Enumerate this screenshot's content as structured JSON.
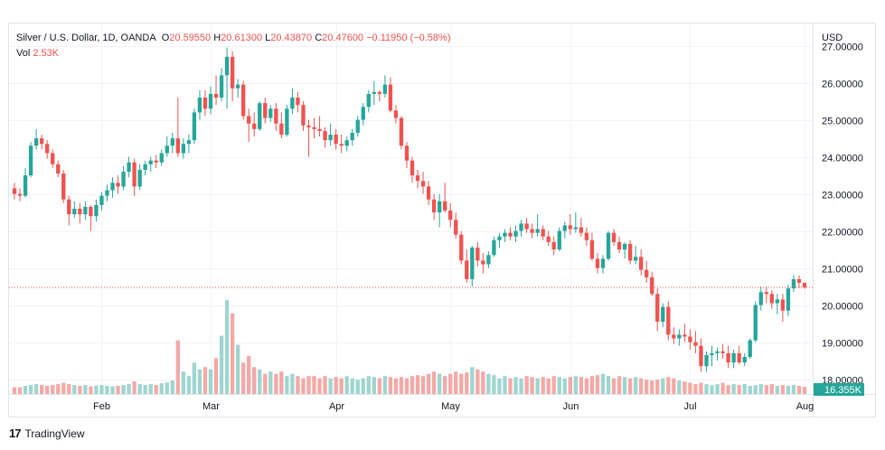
{
  "header": {
    "symbol": "Silver / U.S. Dollar, 1D, OANDA",
    "open_label": "O",
    "open": "20.59550",
    "high_label": "H",
    "high": "20.61300",
    "low_label": "L",
    "low": "20.43870",
    "close_label": "C",
    "close": "20.47600",
    "change": "−0.11950 (−0.58%)",
    "vol_label": "Vol",
    "vol": "2.53K"
  },
  "footer": {
    "logo": "17",
    "brand": "TradingView"
  },
  "colors": {
    "up": "#26a69a",
    "down": "#ef5350",
    "up_vol": "#9fd5cf",
    "down_vol": "#f4a9a7",
    "grid": "#f0f3fa",
    "current": "#ef5350",
    "vol_badge": "#26a69a"
  },
  "chart_data": {
    "type": "candlestick",
    "currency": "USD",
    "ylim": [
      17.6,
      27.6
    ],
    "yticks": [
      "18.00000",
      "19.00000",
      "20.00000",
      "21.00000",
      "22.00000",
      "23.00000",
      "24.00000",
      "25.00000",
      "26.00000",
      "27.00000"
    ],
    "x_labels": [
      {
        "label": "Feb",
        "index": 16
      },
      {
        "label": "Mar",
        "index": 36
      },
      {
        "label": "Apr",
        "index": 59
      },
      {
        "label": "May",
        "index": 80
      },
      {
        "label": "Jun",
        "index": 102
      },
      {
        "label": "Jul",
        "index": 124
      },
      {
        "label": "Aug",
        "index": 145
      }
    ],
    "current_price": 20.476,
    "volume_badge": "16.355K",
    "candles": [
      [
        23.15,
        23.3,
        22.85,
        23.0
      ],
      [
        23.0,
        23.15,
        22.8,
        22.95
      ],
      [
        22.95,
        23.7,
        22.9,
        23.5
      ],
      [
        23.5,
        24.4,
        23.45,
        24.3
      ],
      [
        24.3,
        24.75,
        24.2,
        24.5
      ],
      [
        24.5,
        24.6,
        24.2,
        24.35
      ],
      [
        24.35,
        24.45,
        23.95,
        24.1
      ],
      [
        24.1,
        24.2,
        23.7,
        23.8
      ],
      [
        23.8,
        23.9,
        23.45,
        23.55
      ],
      [
        23.55,
        23.65,
        22.75,
        22.85
      ],
      [
        22.85,
        22.95,
        22.15,
        22.45
      ],
      [
        22.45,
        22.8,
        22.35,
        22.6
      ],
      [
        22.6,
        22.75,
        22.2,
        22.45
      ],
      [
        22.45,
        22.8,
        22.3,
        22.65
      ],
      [
        22.65,
        22.7,
        22.0,
        22.4
      ],
      [
        22.4,
        22.85,
        22.25,
        22.7
      ],
      [
        22.7,
        23.05,
        22.55,
        22.95
      ],
      [
        22.95,
        23.25,
        22.8,
        23.1
      ],
      [
        23.1,
        23.45,
        22.9,
        23.3
      ],
      [
        23.3,
        23.5,
        23.0,
        23.2
      ],
      [
        23.2,
        23.75,
        23.1,
        23.6
      ],
      [
        23.6,
        24.0,
        23.45,
        23.85
      ],
      [
        23.85,
        23.95,
        22.95,
        23.2
      ],
      [
        23.2,
        23.8,
        23.1,
        23.65
      ],
      [
        23.65,
        23.9,
        23.5,
        23.8
      ],
      [
        23.8,
        24.0,
        23.6,
        23.9
      ],
      [
        23.9,
        24.05,
        23.7,
        23.85
      ],
      [
        23.85,
        24.2,
        23.75,
        24.1
      ],
      [
        24.1,
        24.55,
        24.0,
        24.3
      ],
      [
        24.3,
        24.65,
        24.1,
        24.5
      ],
      [
        24.5,
        25.6,
        24.0,
        24.1
      ],
      [
        24.1,
        24.5,
        23.95,
        24.35
      ],
      [
        24.35,
        24.6,
        24.1,
        24.45
      ],
      [
        24.45,
        25.3,
        24.35,
        25.2
      ],
      [
        25.2,
        25.8,
        25.0,
        25.6
      ],
      [
        25.6,
        25.8,
        25.1,
        25.3
      ],
      [
        25.3,
        25.9,
        25.15,
        25.7
      ],
      [
        25.7,
        26.2,
        25.4,
        25.6
      ],
      [
        25.6,
        26.4,
        25.5,
        26.2
      ],
      [
        26.2,
        26.95,
        25.3,
        26.7
      ],
      [
        26.7,
        26.85,
        25.5,
        25.85
      ],
      [
        25.85,
        26.1,
        25.6,
        25.95
      ],
      [
        25.95,
        26.05,
        25.0,
        25.1
      ],
      [
        25.1,
        25.3,
        24.4,
        24.9
      ],
      [
        24.9,
        25.2,
        24.55,
        24.75
      ],
      [
        24.75,
        25.5,
        24.7,
        25.45
      ],
      [
        25.45,
        25.6,
        24.9,
        25.05
      ],
      [
        25.05,
        25.4,
        24.95,
        25.3
      ],
      [
        25.3,
        25.45,
        24.7,
        24.9
      ],
      [
        24.9,
        25.2,
        24.5,
        24.6
      ],
      [
        24.6,
        25.4,
        24.55,
        25.3
      ],
      [
        25.3,
        25.85,
        25.15,
        25.6
      ],
      [
        25.6,
        25.75,
        25.2,
        25.4
      ],
      [
        25.4,
        25.5,
        24.7,
        24.85
      ],
      [
        24.85,
        25.0,
        24.0,
        24.8
      ],
      [
        24.8,
        25.05,
        24.5,
        24.75
      ],
      [
        24.75,
        25.1,
        24.55,
        24.7
      ],
      [
        24.7,
        24.8,
        24.25,
        24.45
      ],
      [
        24.45,
        24.9,
        24.3,
        24.6
      ],
      [
        24.6,
        24.75,
        24.2,
        24.35
      ],
      [
        24.35,
        24.6,
        24.1,
        24.3
      ],
      [
        24.3,
        24.55,
        24.15,
        24.45
      ],
      [
        24.45,
        24.75,
        24.3,
        24.65
      ],
      [
        24.65,
        25.1,
        24.55,
        25.0
      ],
      [
        25.0,
        25.45,
        24.85,
        25.35
      ],
      [
        25.35,
        25.8,
        25.2,
        25.7
      ],
      [
        25.7,
        26.05,
        25.4,
        25.75
      ],
      [
        25.75,
        25.8,
        25.5,
        25.7
      ],
      [
        25.7,
        26.2,
        25.6,
        25.95
      ],
      [
        25.95,
        26.15,
        25.2,
        25.25
      ],
      [
        25.25,
        25.4,
        24.9,
        25.05
      ],
      [
        25.05,
        25.1,
        24.2,
        24.3
      ],
      [
        24.3,
        24.4,
        23.7,
        23.9
      ],
      [
        23.9,
        24.0,
        23.3,
        23.5
      ],
      [
        23.5,
        23.65,
        23.15,
        23.35
      ],
      [
        23.35,
        23.6,
        23.0,
        23.2
      ],
      [
        23.2,
        23.35,
        22.7,
        22.85
      ],
      [
        22.85,
        23.0,
        22.3,
        22.5
      ],
      [
        22.5,
        23.0,
        22.1,
        22.8
      ],
      [
        22.8,
        23.3,
        22.5,
        22.55
      ],
      [
        22.55,
        22.75,
        22.1,
        22.3
      ],
      [
        22.3,
        22.5,
        21.8,
        21.9
      ],
      [
        21.9,
        22.0,
        21.1,
        21.2
      ],
      [
        21.2,
        21.5,
        20.6,
        20.7
      ],
      [
        20.7,
        21.6,
        20.5,
        21.55
      ],
      [
        21.55,
        21.7,
        21.05,
        21.2
      ],
      [
        21.2,
        21.4,
        20.85,
        21.1
      ],
      [
        21.1,
        21.45,
        21.0,
        21.35
      ],
      [
        21.35,
        21.85,
        21.3,
        21.75
      ],
      [
        21.75,
        21.95,
        21.55,
        21.85
      ],
      [
        21.85,
        22.05,
        21.7,
        21.95
      ],
      [
        21.95,
        22.1,
        21.75,
        21.85
      ],
      [
        21.85,
        22.15,
        21.7,
        22.0
      ],
      [
        22.0,
        22.3,
        21.85,
        22.2
      ],
      [
        22.2,
        22.35,
        21.95,
        22.05
      ],
      [
        22.05,
        22.2,
        21.8,
        21.95
      ],
      [
        21.95,
        22.45,
        21.85,
        22.05
      ],
      [
        22.05,
        22.15,
        21.75,
        21.85
      ],
      [
        21.85,
        22.0,
        21.6,
        21.7
      ],
      [
        21.7,
        21.85,
        21.35,
        21.5
      ],
      [
        21.5,
        22.1,
        21.45,
        22.0
      ],
      [
        22.0,
        22.25,
        21.8,
        22.15
      ],
      [
        22.15,
        22.45,
        21.9,
        22.05
      ],
      [
        22.05,
        22.5,
        21.95,
        22.1
      ],
      [
        22.1,
        22.35,
        21.85,
        21.95
      ],
      [
        21.95,
        22.1,
        21.6,
        21.75
      ],
      [
        21.75,
        21.95,
        21.2,
        21.25
      ],
      [
        21.25,
        21.4,
        20.85,
        21.0
      ],
      [
        21.0,
        21.35,
        20.85,
        21.25
      ],
      [
        21.25,
        22.0,
        21.2,
        21.95
      ],
      [
        21.95,
        22.05,
        21.6,
        21.7
      ],
      [
        21.7,
        21.85,
        21.4,
        21.5
      ],
      [
        21.5,
        21.7,
        21.25,
        21.65
      ],
      [
        21.65,
        21.75,
        21.1,
        21.2
      ],
      [
        21.2,
        21.6,
        21.1,
        21.3
      ],
      [
        21.3,
        21.5,
        20.8,
        20.95
      ],
      [
        20.95,
        21.2,
        20.6,
        20.75
      ],
      [
        20.75,
        20.9,
        20.25,
        20.3
      ],
      [
        20.3,
        20.45,
        19.3,
        19.55
      ],
      [
        19.55,
        20.05,
        19.4,
        19.95
      ],
      [
        19.95,
        20.1,
        19.05,
        19.2
      ],
      [
        19.2,
        19.4,
        18.95,
        19.1
      ],
      [
        19.1,
        19.35,
        18.9,
        19.2
      ],
      [
        19.2,
        19.5,
        19.0,
        19.15
      ],
      [
        19.15,
        19.35,
        18.8,
        19.0
      ],
      [
        19.0,
        19.3,
        18.7,
        18.9
      ],
      [
        18.9,
        19.1,
        18.2,
        18.35
      ],
      [
        18.35,
        18.75,
        18.2,
        18.65
      ],
      [
        18.65,
        18.9,
        18.35,
        18.7
      ],
      [
        18.7,
        18.85,
        18.5,
        18.75
      ],
      [
        18.75,
        18.95,
        18.55,
        18.7
      ],
      [
        18.7,
        18.9,
        18.3,
        18.45
      ],
      [
        18.45,
        18.8,
        18.3,
        18.7
      ],
      [
        18.7,
        18.9,
        18.4,
        18.45
      ],
      [
        18.45,
        18.7,
        18.35,
        18.6
      ],
      [
        18.6,
        19.1,
        18.55,
        19.05
      ],
      [
        19.05,
        20.1,
        19.0,
        20.0
      ],
      [
        20.0,
        20.5,
        19.85,
        20.35
      ],
      [
        20.35,
        20.5,
        20.05,
        20.3
      ],
      [
        20.3,
        20.4,
        19.9,
        20.05
      ],
      [
        20.05,
        20.3,
        19.75,
        20.15
      ],
      [
        20.15,
        20.3,
        19.55,
        19.85
      ],
      [
        19.85,
        20.55,
        19.7,
        20.45
      ],
      [
        20.45,
        20.8,
        20.35,
        20.7
      ],
      [
        20.7,
        20.8,
        20.45,
        20.6
      ],
      [
        20.6,
        20.61,
        20.44,
        20.48
      ]
    ],
    "volumes": [
      0.15,
      0.15,
      0.18,
      0.2,
      0.22,
      0.2,
      0.18,
      0.2,
      0.22,
      0.25,
      0.22,
      0.2,
      0.18,
      0.2,
      0.17,
      0.19,
      0.2,
      0.18,
      0.17,
      0.18,
      0.2,
      0.22,
      0.28,
      0.22,
      0.2,
      0.22,
      0.2,
      0.24,
      0.26,
      0.3,
      1.2,
      0.5,
      0.4,
      0.7,
      0.55,
      0.6,
      0.55,
      0.8,
      1.3,
      2.1,
      1.8,
      1.1,
      0.7,
      0.85,
      0.6,
      0.55,
      0.45,
      0.5,
      0.45,
      0.5,
      0.4,
      0.45,
      0.4,
      0.35,
      0.4,
      0.4,
      0.35,
      0.4,
      0.35,
      0.38,
      0.35,
      0.4,
      0.35,
      0.32,
      0.35,
      0.4,
      0.38,
      0.35,
      0.4,
      0.38,
      0.35,
      0.38,
      0.35,
      0.4,
      0.42,
      0.4,
      0.45,
      0.5,
      0.45,
      0.4,
      0.45,
      0.5,
      0.45,
      0.48,
      0.6,
      0.55,
      0.5,
      0.45,
      0.42,
      0.35,
      0.4,
      0.35,
      0.38,
      0.35,
      0.4,
      0.38,
      0.35,
      0.38,
      0.35,
      0.4,
      0.38,
      0.35,
      0.38,
      0.4,
      0.38,
      0.35,
      0.4,
      0.42,
      0.45,
      0.4,
      0.35,
      0.4,
      0.38,
      0.35,
      0.38,
      0.35,
      0.32,
      0.3,
      0.32,
      0.35,
      0.38,
      0.35,
      0.3,
      0.28,
      0.25,
      0.22,
      0.25,
      0.22,
      0.2,
      0.22,
      0.25,
      0.2,
      0.22,
      0.2,
      0.22,
      0.18,
      0.2,
      0.22,
      0.2,
      0.22,
      0.18,
      0.2,
      0.18,
      0.2,
      0.18,
      0.16
    ]
  }
}
